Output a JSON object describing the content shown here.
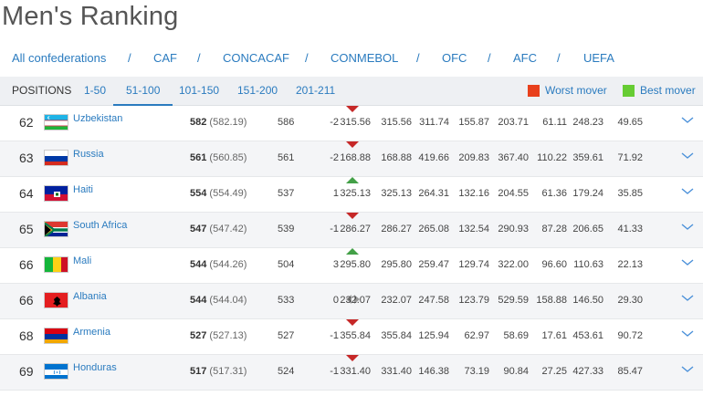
{
  "page_title": "Men's Ranking",
  "confederations": {
    "items": [
      "All confederations",
      "CAF",
      "CONCACAF",
      "CONMEBOL",
      "OFC",
      "AFC",
      "UEFA"
    ],
    "separator": "/"
  },
  "tabs": {
    "label": "POSITIONS",
    "items": [
      "1-50",
      "51-100",
      "101-150",
      "151-200",
      "201-211"
    ],
    "active": "51-100"
  },
  "legend": {
    "worst_mover": "Worst mover",
    "best_mover": "Best mover",
    "worst_color": "#e8401c",
    "best_color": "#66cc33"
  },
  "rows": [
    {
      "rank": "62",
      "country": "Uzbekistan",
      "flag": "flag-uzbekistan-icon",
      "points": "582",
      "points_detail": "(582.19)",
      "prev_points": "586",
      "movement": "-2",
      "trend": "down",
      "cols": [
        "315.56",
        "315.56",
        "311.74",
        "155.87",
        "203.71",
        "61.11",
        "248.23",
        "49.65"
      ]
    },
    {
      "rank": "63",
      "country": "Russia",
      "flag": "flag-russia-icon",
      "points": "561",
      "points_detail": "(560.85)",
      "prev_points": "561",
      "movement": "-2",
      "trend": "down",
      "cols": [
        "168.88",
        "168.88",
        "419.66",
        "209.83",
        "367.40",
        "110.22",
        "359.61",
        "71.92"
      ]
    },
    {
      "rank": "64",
      "country": "Haiti",
      "flag": "flag-haiti-icon",
      "points": "554",
      "points_detail": "(554.49)",
      "prev_points": "537",
      "movement": "1",
      "trend": "up",
      "cols": [
        "325.13",
        "325.13",
        "264.31",
        "132.16",
        "204.55",
        "61.36",
        "179.24",
        "35.85"
      ]
    },
    {
      "rank": "65",
      "country": "South Africa",
      "flag": "flag-south-africa-icon",
      "points": "547",
      "points_detail": "(547.42)",
      "prev_points": "539",
      "movement": "-1",
      "trend": "down",
      "cols": [
        "286.27",
        "286.27",
        "265.08",
        "132.54",
        "290.93",
        "87.28",
        "206.65",
        "41.33"
      ]
    },
    {
      "rank": "66",
      "country": "Mali",
      "flag": "flag-mali-icon",
      "points": "544",
      "points_detail": "(544.26)",
      "prev_points": "504",
      "movement": "3",
      "trend": "up",
      "cols": [
        "295.80",
        "295.80",
        "259.47",
        "129.74",
        "322.00",
        "96.60",
        "110.63",
        "22.13"
      ]
    },
    {
      "rank": "66",
      "country": "Albania",
      "flag": "flag-albania-icon",
      "points": "544",
      "points_detail": "(544.04)",
      "prev_points": "533",
      "movement": "0",
      "trend": "same",
      "cols": [
        "232.07",
        "232.07",
        "247.58",
        "123.79",
        "529.59",
        "158.88",
        "146.50",
        "29.30"
      ]
    },
    {
      "rank": "68",
      "country": "Armenia",
      "flag": "flag-armenia-icon",
      "points": "527",
      "points_detail": "(527.13)",
      "prev_points": "527",
      "movement": "-1",
      "trend": "down",
      "cols": [
        "355.84",
        "355.84",
        "125.94",
        "62.97",
        "58.69",
        "17.61",
        "453.61",
        "90.72"
      ]
    },
    {
      "rank": "69",
      "country": "Honduras",
      "flag": "flag-honduras-icon",
      "points": "517",
      "points_detail": "(517.31)",
      "prev_points": "524",
      "movement": "-1",
      "trend": "down",
      "cols": [
        "331.40",
        "331.40",
        "146.38",
        "73.19",
        "90.84",
        "27.25",
        "427.33",
        "85.47"
      ]
    }
  ]
}
